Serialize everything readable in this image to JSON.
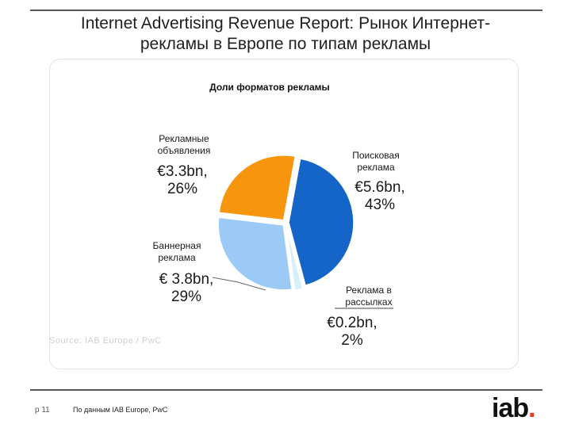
{
  "slide": {
    "title_line1": "Internet Advertising Revenue Report: Рынок Интернет-",
    "title_line2": "рекламы в Европе по типам рекламы",
    "page_number": "p 11",
    "footnote": "По данным IAB Europe, PwC",
    "logo_text": "iab",
    "logo_dot": ".",
    "source_partial": "Source: IAB Europe / PwC"
  },
  "chart_data": {
    "type": "pie",
    "title": "Доли форматов рекламы",
    "slices": [
      {
        "name": "Поисковая реклама",
        "name_line1": "Поисковая",
        "name_line2": "реклама",
        "value_label": "€5.6bn,",
        "percent_label": "43%",
        "value": 5.6,
        "percent": 43,
        "color": "#1565c8"
      },
      {
        "name": "Реклама в рассылках",
        "name_line1": "Реклама в",
        "name_line2": "рассылках",
        "value_label": "€0.2bn,",
        "percent_label": "2%",
        "value": 0.2,
        "percent": 2,
        "color": "#d6f0fa"
      },
      {
        "name": "Баннерная реклама",
        "name_line1": "Баннерная",
        "name_line2": "реклама",
        "value_label": "€ 3.8bn,",
        "percent_label": "29%",
        "value": 3.8,
        "percent": 29,
        "color": "#9ccaf6"
      },
      {
        "name": "Рекламные объявления",
        "name_line1": "Рекламные",
        "name_line2": "объявления",
        "value_label": "€3.3bn,",
        "percent_label": "26%",
        "value": 3.3,
        "percent": 26,
        "color": "#f7950d"
      }
    ]
  }
}
